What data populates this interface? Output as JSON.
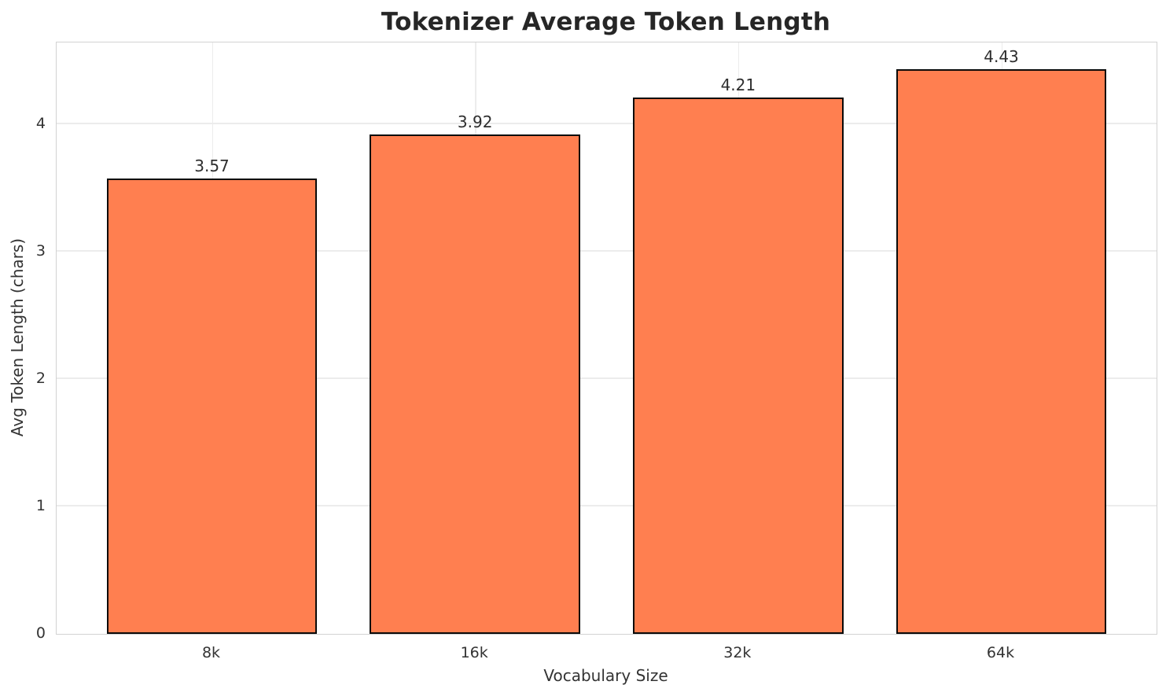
{
  "chart_data": {
    "type": "bar",
    "title": "Tokenizer Average Token Length",
    "xlabel": "Vocabulary Size",
    "ylabel": "Avg Token Length (chars)",
    "categories": [
      "8k",
      "16k",
      "32k",
      "64k"
    ],
    "values": [
      3.57,
      3.92,
      4.21,
      4.43
    ],
    "value_labels": [
      "3.57",
      "3.92",
      "4.21",
      "4.43"
    ],
    "yticks": [
      0,
      1,
      2,
      3,
      4
    ],
    "ytick_labels": [
      "0",
      "1",
      "2",
      "3",
      "4"
    ],
    "ylim": [
      0,
      4.64
    ],
    "grid": true,
    "legend": "none",
    "bar_color": "#FF7F50",
    "bar_edge_color": "#0a0a0a",
    "grid_color": "#ececec",
    "spine_color": "#d2d2d2",
    "title_color": "#262626",
    "text_color": "#333333",
    "background_color": "#ffffff"
  }
}
